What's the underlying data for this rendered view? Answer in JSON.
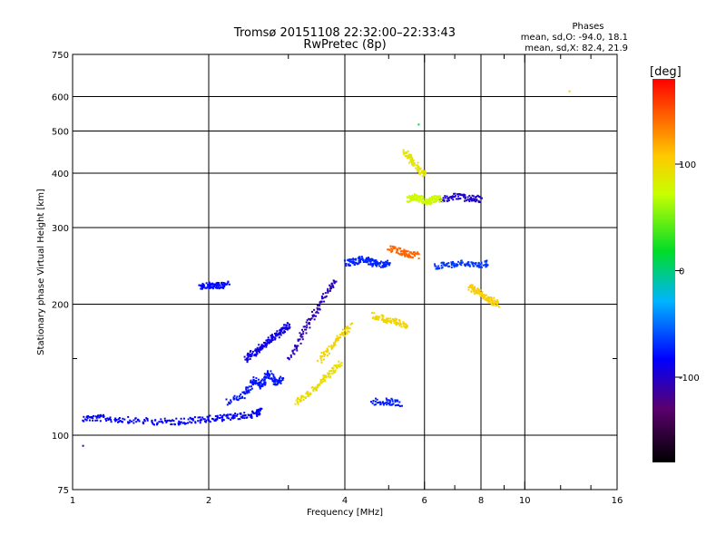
{
  "chart_data": {
    "type": "scatter",
    "title": "Tromsø 20151108 22:32:00–22:33:43",
    "subtitle": "RwPretec (8p)",
    "xlabel": "Frequency [MHz]",
    "ylabel": "Stationary phase Virtual Height [km]",
    "x_scale": "log",
    "y_scale": "log",
    "xlim": [
      1,
      16
    ],
    "ylim": [
      75,
      750
    ],
    "x_ticks": [
      1,
      2,
      4,
      6,
      8,
      10,
      16
    ],
    "x_minor_ticks": [
      3,
      5,
      7,
      9,
      12,
      14
    ],
    "y_ticks": [
      75,
      100,
      200,
      300,
      400,
      500,
      600,
      750
    ],
    "y_minor_ticks": [
      150
    ],
    "grid": true,
    "phase_stats": {
      "header": "Phases",
      "line_o": "mean, sd,O: -94.0, 18.1",
      "line_x": "mean, sd,X:  82.4, 21.9"
    },
    "colorbar": {
      "label": "[deg]",
      "range": [
        -180,
        180
      ],
      "ticks": [
        100,
        0,
        -100
      ]
    },
    "o_mode_traces": [
      {
        "x": [
          1.05,
          1.15,
          1.3,
          1.5,
          1.7,
          1.9,
          2.1,
          2.3,
          2.5,
          2.6
        ],
        "y": [
          110,
          110,
          109,
          108,
          108,
          109,
          110,
          111,
          112,
          114
        ],
        "phase": -100
      },
      {
        "x": [
          2.2,
          2.4,
          2.5,
          2.6,
          2.7,
          2.8,
          2.9
        ],
        "y": [
          120,
          125,
          135,
          130,
          140,
          132,
          135
        ],
        "phase": -95
      },
      {
        "x": [
          2.4,
          2.5,
          2.6,
          2.7,
          2.8,
          2.9,
          3.0
        ],
        "y": [
          150,
          155,
          160,
          165,
          170,
          175,
          180
        ],
        "phase": -105
      },
      {
        "x": [
          3.0,
          3.2,
          3.4,
          3.6,
          3.8
        ],
        "y": [
          150,
          170,
          190,
          210,
          230
        ],
        "phase": -115
      },
      {
        "x": [
          1.9,
          2.0,
          2.1,
          2.2
        ],
        "y": [
          220,
          222,
          221,
          223
        ],
        "phase": -98
      },
      {
        "x": [
          4.0,
          4.2,
          4.4,
          4.6,
          4.8,
          5.0
        ],
        "y": [
          250,
          252,
          255,
          250,
          248,
          250
        ],
        "phase": -90
      },
      {
        "x": [
          6.3,
          6.8,
          7.3,
          7.8,
          8.3
        ],
        "y": [
          245,
          248,
          250,
          246,
          250
        ],
        "phase": -85
      },
      {
        "x": [
          4.6,
          5.0,
          5.3
        ],
        "y": [
          120,
          120,
          119
        ],
        "phase": -92
      },
      {
        "x": [
          6.5,
          7.0,
          7.5,
          8.0
        ],
        "y": [
          350,
          355,
          352,
          350
        ],
        "phase": -110
      }
    ],
    "x_mode_traces": [
      {
        "x": [
          3.1,
          3.3,
          3.5,
          3.7,
          3.9
        ],
        "y": [
          120,
          125,
          132,
          140,
          148
        ],
        "phase": 82
      },
      {
        "x": [
          3.5,
          3.7,
          3.9,
          4.1
        ],
        "y": [
          150,
          160,
          170,
          180
        ],
        "phase": 88
      },
      {
        "x": [
          4.6,
          4.9,
          5.2,
          5.5
        ],
        "y": [
          190,
          185,
          182,
          180
        ],
        "phase": 90
      },
      {
        "x": [
          5.0,
          5.3,
          5.5,
          5.8
        ],
        "y": [
          270,
          265,
          262,
          260
        ],
        "phase": 140
      },
      {
        "x": [
          5.5,
          5.7,
          5.9,
          6.1,
          6.3,
          6.5
        ],
        "y": [
          350,
          355,
          350,
          345,
          352,
          350
        ],
        "phase": 55
      },
      {
        "x": [
          5.4,
          5.6,
          5.8,
          6.0
        ],
        "y": [
          450,
          430,
          410,
          400
        ],
        "phase": 75
      },
      {
        "x": [
          7.5,
          7.8,
          8.1,
          8.4,
          8.7
        ],
        "y": [
          220,
          215,
          210,
          205,
          200
        ],
        "phase": 95
      }
    ],
    "isolated_points": [
      {
        "x": 12.5,
        "y": 620,
        "phase": 100
      },
      {
        "x": 5.8,
        "y": 520,
        "phase": -5
      },
      {
        "x": 1.05,
        "y": 95,
        "phase": -110
      }
    ]
  }
}
